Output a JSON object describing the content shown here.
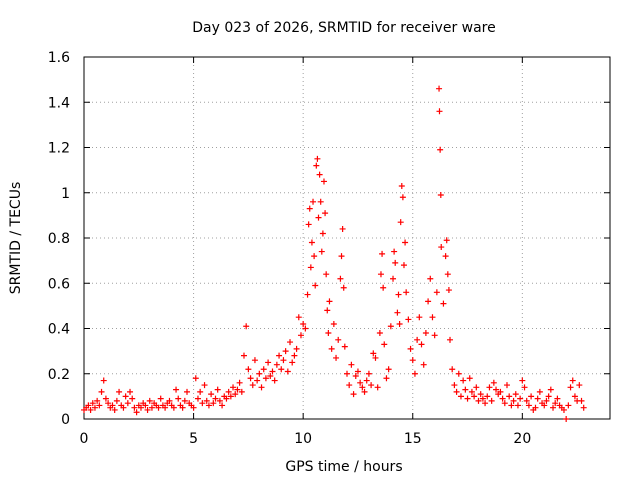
{
  "chart_data": {
    "type": "scatter",
    "title": "Day 023 of 2026, SRMTID for receiver ware",
    "xlabel": "GPS time / hours",
    "ylabel": "SRMTID / TECUs",
    "xlim": [
      0,
      24
    ],
    "ylim": [
      0,
      1.6
    ],
    "x_ticks": [
      0,
      5,
      10,
      15,
      20
    ],
    "x_tick_labels": [
      "0",
      "5",
      "10",
      "15",
      "20"
    ],
    "y_ticks": [
      0,
      0.2,
      0.4,
      0.6,
      0.8,
      1.0,
      1.2,
      1.4,
      1.6
    ],
    "y_tick_labels": [
      "0",
      "0.2",
      "0.4",
      "0.6",
      "0.8",
      "1",
      "1.2",
      "1.4",
      "1.6"
    ],
    "grid": true,
    "marker": "+",
    "series": [
      {
        "name": "SRMTID",
        "color": "#ff0000",
        "points": [
          [
            0.0,
            0.04
          ],
          [
            0.1,
            0.05
          ],
          [
            0.2,
            0.06
          ],
          [
            0.3,
            0.04
          ],
          [
            0.4,
            0.07
          ],
          [
            0.5,
            0.05
          ],
          [
            0.6,
            0.08
          ],
          [
            0.7,
            0.06
          ],
          [
            0.8,
            0.12
          ],
          [
            0.9,
            0.17
          ],
          [
            1.0,
            0.09
          ],
          [
            1.1,
            0.07
          ],
          [
            1.2,
            0.05
          ],
          [
            1.3,
            0.06
          ],
          [
            1.4,
            0.04
          ],
          [
            1.5,
            0.08
          ],
          [
            1.6,
            0.12
          ],
          [
            1.7,
            0.06
          ],
          [
            1.8,
            0.05
          ],
          [
            1.9,
            0.1
          ],
          [
            2.0,
            0.07
          ],
          [
            2.1,
            0.12
          ],
          [
            2.2,
            0.09
          ],
          [
            2.3,
            0.05
          ],
          [
            2.4,
            0.03
          ],
          [
            2.5,
            0.06
          ],
          [
            2.6,
            0.05
          ],
          [
            2.7,
            0.07
          ],
          [
            2.8,
            0.06
          ],
          [
            2.9,
            0.04
          ],
          [
            3.0,
            0.08
          ],
          [
            3.1,
            0.05
          ],
          [
            3.2,
            0.07
          ],
          [
            3.3,
            0.06
          ],
          [
            3.4,
            0.05
          ],
          [
            3.5,
            0.09
          ],
          [
            3.6,
            0.06
          ],
          [
            3.7,
            0.05
          ],
          [
            3.8,
            0.07
          ],
          [
            3.9,
            0.08
          ],
          [
            4.0,
            0.06
          ],
          [
            4.1,
            0.05
          ],
          [
            4.2,
            0.13
          ],
          [
            4.3,
            0.09
          ],
          [
            4.4,
            0.06
          ],
          [
            4.5,
            0.05
          ],
          [
            4.6,
            0.08
          ],
          [
            4.7,
            0.12
          ],
          [
            4.8,
            0.07
          ],
          [
            4.9,
            0.06
          ],
          [
            5.0,
            0.05
          ],
          [
            5.1,
            0.18
          ],
          [
            5.2,
            0.09
          ],
          [
            5.3,
            0.12
          ],
          [
            5.4,
            0.07
          ],
          [
            5.5,
            0.15
          ],
          [
            5.6,
            0.08
          ],
          [
            5.7,
            0.06
          ],
          [
            5.8,
            0.11
          ],
          [
            5.9,
            0.07
          ],
          [
            6.0,
            0.09
          ],
          [
            6.1,
            0.13
          ],
          [
            6.2,
            0.08
          ],
          [
            6.3,
            0.06
          ],
          [
            6.4,
            0.1
          ],
          [
            6.5,
            0.09
          ],
          [
            6.6,
            0.12
          ],
          [
            6.7,
            0.1
          ],
          [
            6.8,
            0.14
          ],
          [
            6.9,
            0.11
          ],
          [
            7.0,
            0.13
          ],
          [
            7.1,
            0.16
          ],
          [
            7.2,
            0.12
          ],
          [
            7.3,
            0.28
          ],
          [
            7.4,
            0.41
          ],
          [
            7.5,
            0.22
          ],
          [
            7.6,
            0.18
          ],
          [
            7.7,
            0.15
          ],
          [
            7.8,
            0.26
          ],
          [
            7.9,
            0.17
          ],
          [
            8.0,
            0.2
          ],
          [
            8.1,
            0.14
          ],
          [
            8.2,
            0.22
          ],
          [
            8.3,
            0.18
          ],
          [
            8.4,
            0.25
          ],
          [
            8.5,
            0.19
          ],
          [
            8.6,
            0.21
          ],
          [
            8.7,
            0.17
          ],
          [
            8.8,
            0.24
          ],
          [
            8.9,
            0.28
          ],
          [
            9.0,
            0.22
          ],
          [
            9.1,
            0.26
          ],
          [
            9.2,
            0.3
          ],
          [
            9.3,
            0.21
          ],
          [
            9.4,
            0.34
          ],
          [
            9.5,
            0.25
          ],
          [
            9.6,
            0.28
          ],
          [
            9.7,
            0.31
          ],
          [
            9.8,
            0.45
          ],
          [
            9.9,
            0.37
          ],
          [
            10.0,
            0.42
          ],
          [
            10.1,
            0.4
          ],
          [
            10.2,
            0.55
          ],
          [
            10.25,
            0.86
          ],
          [
            10.3,
            0.93
          ],
          [
            10.35,
            0.67
          ],
          [
            10.4,
            0.78
          ],
          [
            10.45,
            0.96
          ],
          [
            10.5,
            0.72
          ],
          [
            10.55,
            0.59
          ],
          [
            10.6,
            1.12
          ],
          [
            10.65,
            1.15
          ],
          [
            10.7,
            0.89
          ],
          [
            10.75,
            1.08
          ],
          [
            10.8,
            0.96
          ],
          [
            10.85,
            0.74
          ],
          [
            10.9,
            0.82
          ],
          [
            10.95,
            1.05
          ],
          [
            11.0,
            0.91
          ],
          [
            11.05,
            0.64
          ],
          [
            11.1,
            0.48
          ],
          [
            11.15,
            0.38
          ],
          [
            11.2,
            0.52
          ],
          [
            11.3,
            0.31
          ],
          [
            11.4,
            0.42
          ],
          [
            11.5,
            0.27
          ],
          [
            11.6,
            0.35
          ],
          [
            11.7,
            0.62
          ],
          [
            11.75,
            0.72
          ],
          [
            11.8,
            0.84
          ],
          [
            11.85,
            0.58
          ],
          [
            11.9,
            0.32
          ],
          [
            12.0,
            0.2
          ],
          [
            12.1,
            0.15
          ],
          [
            12.2,
            0.24
          ],
          [
            12.3,
            0.11
          ],
          [
            12.4,
            0.19
          ],
          [
            12.5,
            0.21
          ],
          [
            12.6,
            0.16
          ],
          [
            12.7,
            0.14
          ],
          [
            12.8,
            0.12
          ],
          [
            12.9,
            0.17
          ],
          [
            13.0,
            0.2
          ],
          [
            13.1,
            0.15
          ],
          [
            13.2,
            0.29
          ],
          [
            13.3,
            0.27
          ],
          [
            13.4,
            0.14
          ],
          [
            13.5,
            0.38
          ],
          [
            13.55,
            0.64
          ],
          [
            13.6,
            0.73
          ],
          [
            13.65,
            0.58
          ],
          [
            13.7,
            0.33
          ],
          [
            13.8,
            0.18
          ],
          [
            13.9,
            0.22
          ],
          [
            14.0,
            0.41
          ],
          [
            14.1,
            0.62
          ],
          [
            14.15,
            0.74
          ],
          [
            14.2,
            0.69
          ],
          [
            14.3,
            0.47
          ],
          [
            14.35,
            0.55
          ],
          [
            14.4,
            0.42
          ],
          [
            14.45,
            0.87
          ],
          [
            14.5,
            1.03
          ],
          [
            14.55,
            0.98
          ],
          [
            14.6,
            0.68
          ],
          [
            14.65,
            0.78
          ],
          [
            14.7,
            0.56
          ],
          [
            14.8,
            0.44
          ],
          [
            14.9,
            0.31
          ],
          [
            15.0,
            0.26
          ],
          [
            15.1,
            0.2
          ],
          [
            15.2,
            0.35
          ],
          [
            15.3,
            0.45
          ],
          [
            15.4,
            0.33
          ],
          [
            15.5,
            0.24
          ],
          [
            15.6,
            0.38
          ],
          [
            15.7,
            0.52
          ],
          [
            15.8,
            0.62
          ],
          [
            15.9,
            0.45
          ],
          [
            16.0,
            0.37
          ],
          [
            16.1,
            0.56
          ],
          [
            16.2,
            1.46
          ],
          [
            16.22,
            1.36
          ],
          [
            16.25,
            1.19
          ],
          [
            16.28,
            0.99
          ],
          [
            16.3,
            0.76
          ],
          [
            16.4,
            0.51
          ],
          [
            16.5,
            0.72
          ],
          [
            16.55,
            0.79
          ],
          [
            16.6,
            0.64
          ],
          [
            16.65,
            0.57
          ],
          [
            16.7,
            0.35
          ],
          [
            16.8,
            0.22
          ],
          [
            16.9,
            0.15
          ],
          [
            17.0,
            0.12
          ],
          [
            17.1,
            0.2
          ],
          [
            17.2,
            0.1
          ],
          [
            17.3,
            0.17
          ],
          [
            17.4,
            0.13
          ],
          [
            17.5,
            0.09
          ],
          [
            17.6,
            0.18
          ],
          [
            17.7,
            0.12
          ],
          [
            17.8,
            0.1
          ],
          [
            17.9,
            0.14
          ],
          [
            18.0,
            0.08
          ],
          [
            18.1,
            0.11
          ],
          [
            18.2,
            0.09
          ],
          [
            18.3,
            0.07
          ],
          [
            18.4,
            0.1
          ],
          [
            18.5,
            0.14
          ],
          [
            18.6,
            0.08
          ],
          [
            18.7,
            0.16
          ],
          [
            18.8,
            0.13
          ],
          [
            18.9,
            0.11
          ],
          [
            19.0,
            0.12
          ],
          [
            19.1,
            0.09
          ],
          [
            19.2,
            0.07
          ],
          [
            19.3,
            0.15
          ],
          [
            19.4,
            0.1
          ],
          [
            19.5,
            0.06
          ],
          [
            19.6,
            0.08
          ],
          [
            19.7,
            0.11
          ],
          [
            19.8,
            0.06
          ],
          [
            19.9,
            0.09
          ],
          [
            20.0,
            0.17
          ],
          [
            20.1,
            0.14
          ],
          [
            20.2,
            0.08
          ],
          [
            20.3,
            0.06
          ],
          [
            20.4,
            0.1
          ],
          [
            20.5,
            0.04
          ],
          [
            20.6,
            0.05
          ],
          [
            20.7,
            0.09
          ],
          [
            20.8,
            0.12
          ],
          [
            20.9,
            0.07
          ],
          [
            21.0,
            0.06
          ],
          [
            21.1,
            0.08
          ],
          [
            21.2,
            0.1
          ],
          [
            21.3,
            0.13
          ],
          [
            21.4,
            0.05
          ],
          [
            21.5,
            0.07
          ],
          [
            21.6,
            0.09
          ],
          [
            21.7,
            0.06
          ],
          [
            21.8,
            0.05
          ],
          [
            21.9,
            0.04
          ],
          [
            22.0,
            0.0
          ],
          [
            22.1,
            0.06
          ],
          [
            22.2,
            0.14
          ],
          [
            22.3,
            0.17
          ],
          [
            22.4,
            0.1
          ],
          [
            22.5,
            0.08
          ],
          [
            22.6,
            0.15
          ],
          [
            22.7,
            0.08
          ],
          [
            22.8,
            0.05
          ]
        ]
      }
    ]
  }
}
